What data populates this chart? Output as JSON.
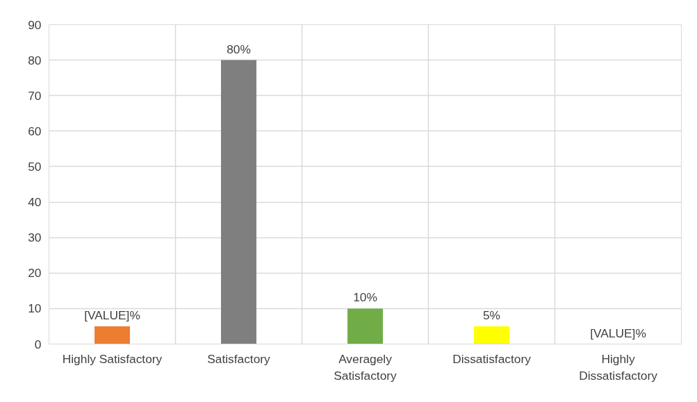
{
  "chart_data": {
    "type": "bar",
    "categories": [
      "Highly Satisfactory",
      "Satisfactory",
      "Averagely Satisfactory",
      "Dissatisfactory",
      "Highly Dissatisfactory"
    ],
    "values": [
      5,
      80,
      10,
      5,
      0
    ],
    "colors": [
      "#ed7d31",
      "#7f7f7f",
      "#70ad47",
      "#ffff00",
      "#5b9bd5"
    ],
    "value_labels": [
      "[VALUE]%",
      "80%",
      "10%",
      "5%",
      "[VALUE]%"
    ],
    "ylim": [
      0,
      90
    ],
    "yticks": [
      0,
      10,
      20,
      30,
      40,
      50,
      60,
      70,
      80,
      90
    ],
    "grid": true
  }
}
